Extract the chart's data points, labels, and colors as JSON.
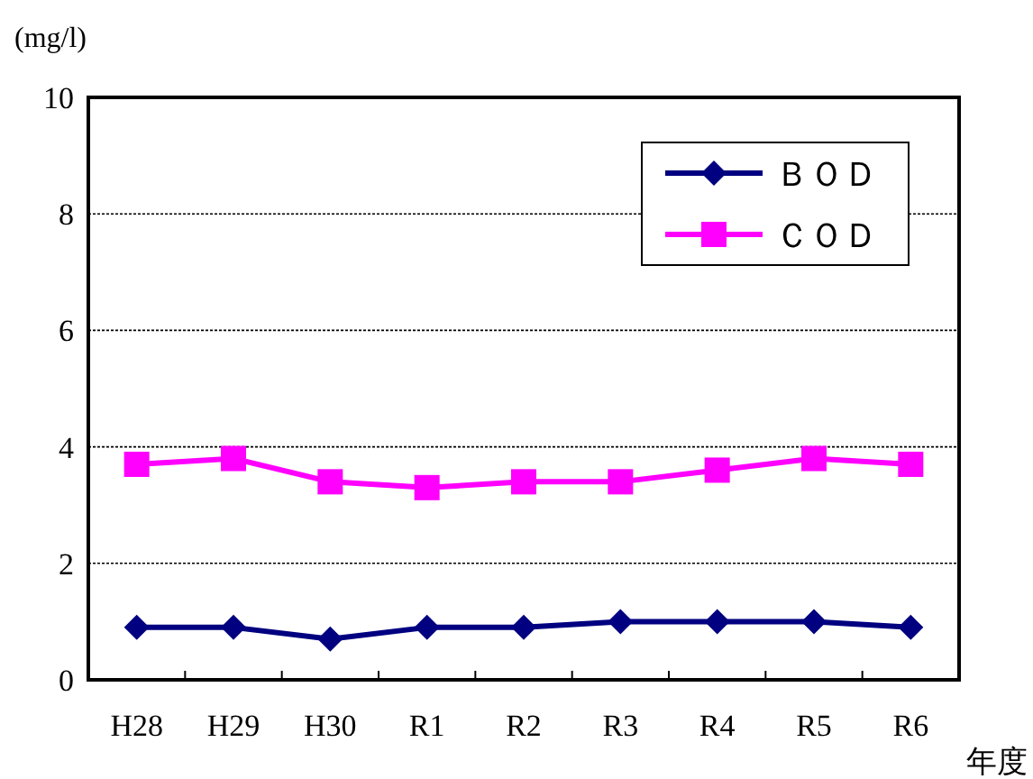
{
  "chart_data": {
    "type": "line",
    "ylabel": "(mg/l)",
    "xlabel": "年度",
    "categories": [
      "H28",
      "H29",
      "H30",
      "R1",
      "R2",
      "R3",
      "R4",
      "R5",
      "R6"
    ],
    "series": [
      {
        "name": "ＢＯＤ",
        "color": "#000080",
        "marker": "diamond",
        "values": [
          0.9,
          0.9,
          0.7,
          0.9,
          0.9,
          1.0,
          1.0,
          1.0,
          0.9
        ]
      },
      {
        "name": "ＣＯＤ",
        "color": "#ff00ff",
        "marker": "square",
        "values": [
          3.7,
          3.8,
          3.4,
          3.3,
          3.4,
          3.4,
          3.6,
          3.8,
          3.7
        ]
      }
    ],
    "ylim": [
      0,
      10
    ],
    "yticks": [
      0,
      2,
      4,
      6,
      8,
      10
    ],
    "grid": "y",
    "legend": "top right",
    "line_style": "solid"
  }
}
